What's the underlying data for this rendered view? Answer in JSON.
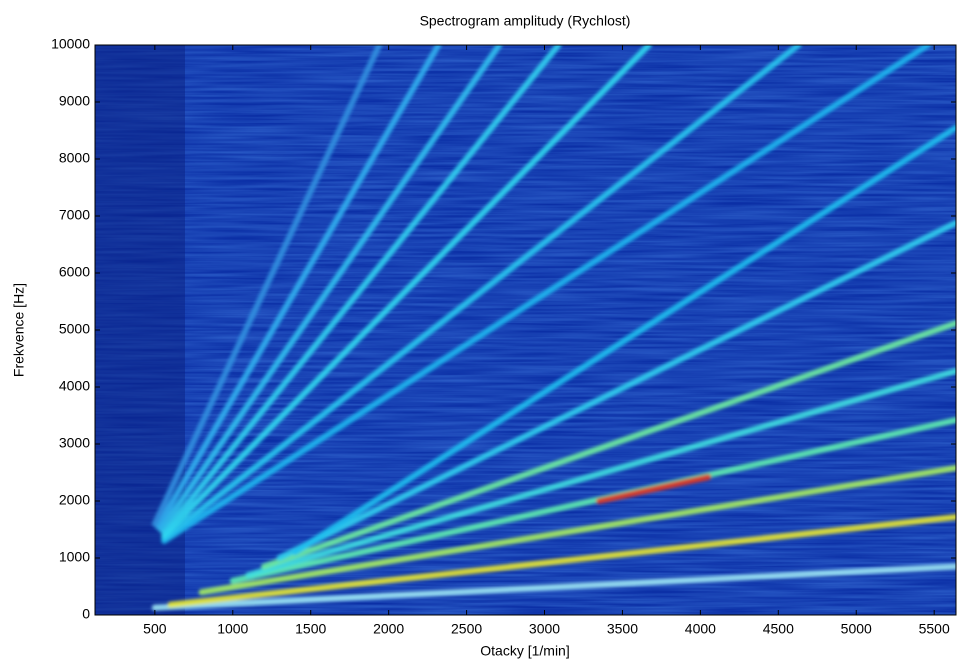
{
  "chart_data": {
    "type": "spectrogram",
    "title": "Spectrogram amplitudy (Rychlost)",
    "x_label": "Otacky [1/min]",
    "y_label": "Frekvence [Hz]",
    "xlim": [
      116,
      5640
    ],
    "ylim": [
      0,
      10000
    ],
    "xticks": [
      500,
      1000,
      1500,
      2000,
      2500,
      3000,
      3500,
      4000,
      4500,
      5000,
      5500
    ],
    "yticks": [
      0,
      1000,
      2000,
      3000,
      4000,
      5000,
      6000,
      7000,
      8000,
      9000,
      10000
    ],
    "grid": false,
    "background_color": "#0b2fa6",
    "series": [
      {
        "color": "#9fe8f5",
        "x": [
          500,
          5640
        ],
        "values": [
          130,
          850
        ]
      },
      {
        "color": "#e8e830",
        "x": [
          600,
          5640
        ],
        "values": [
          180,
          1720
        ]
      },
      {
        "color": "#a8f060",
        "x": [
          800,
          5640
        ],
        "values": [
          400,
          2580
        ]
      },
      {
        "color": "#60f0b0",
        "x": [
          1000,
          5640
        ],
        "values": [
          600,
          3420
        ]
      },
      {
        "color": "#40e0e0",
        "x": [
          1100,
          5640
        ],
        "values": [
          700,
          4280
        ]
      },
      {
        "color": "#70f0a0",
        "x": [
          1200,
          5640
        ],
        "values": [
          850,
          5120
        ]
      },
      {
        "color": "#30d0f0",
        "x": [
          1300,
          5640
        ],
        "values": [
          1000,
          6880
        ]
      },
      {
        "color": "#20c0f0",
        "x": [
          1400,
          5640
        ],
        "values": [
          1100,
          8550
        ]
      },
      {
        "color": "#20b8f0",
        "x": [
          560,
          5460
        ],
        "values": [
          1300,
          10000
        ]
      },
      {
        "color": "#28c8f0",
        "x": [
          560,
          4630
        ],
        "values": [
          1350,
          10000
        ]
      },
      {
        "color": "#30d8f0",
        "x": [
          560,
          3670
        ],
        "values": [
          1400,
          10000
        ]
      },
      {
        "color": "#30d0f0",
        "x": [
          560,
          3090
        ],
        "values": [
          1450,
          10000
        ]
      },
      {
        "color": "#30c0f0",
        "x": [
          540,
          2710
        ],
        "values": [
          1500,
          10000
        ]
      },
      {
        "color": "#30b0f0",
        "x": [
          520,
          2320
        ],
        "values": [
          1550,
          10000
        ]
      },
      {
        "color": "#3090e0",
        "x": [
          500,
          1940
        ],
        "values": [
          1600,
          10000
        ]
      },
      {
        "color": "#e03020",
        "x": [
          3350,
          4050
        ],
        "values": [
          2000,
          2420
        ]
      }
    ]
  }
}
